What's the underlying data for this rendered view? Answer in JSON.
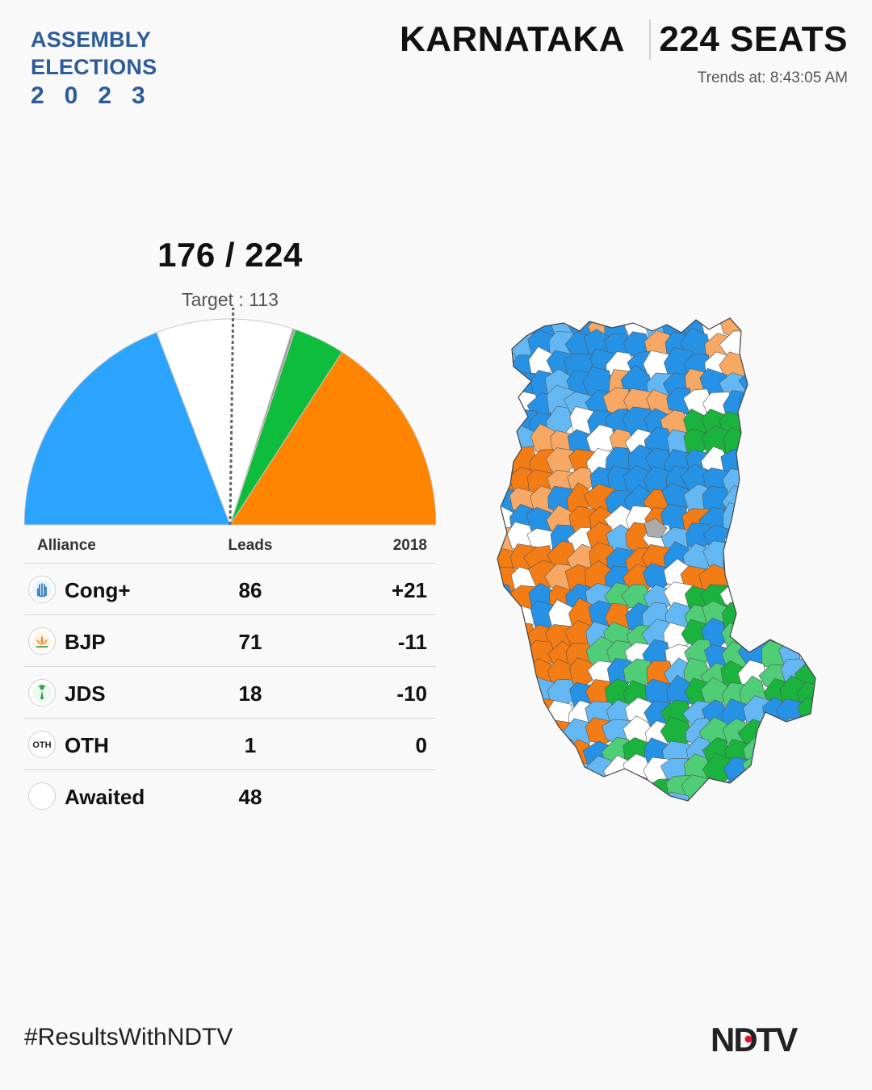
{
  "header": {
    "logo_line1": "ASSEMBLY",
    "logo_line2": "ELECTIONS",
    "logo_year": "2023",
    "state": "KARNATAKA",
    "seats": "224 SEATS",
    "trends_label": "Trends at:",
    "trends_time": "8:43:05 AM"
  },
  "tally": {
    "declared": "176",
    "separator": " / ",
    "total": "224",
    "target_text": "Target : 113"
  },
  "table": {
    "headers": {
      "alliance": "Alliance",
      "leads": "Leads",
      "prev": "2018"
    },
    "rows": [
      {
        "party": "Cong+",
        "leads": "86",
        "change": "+21",
        "icon": "hand-icon"
      },
      {
        "party": "BJP",
        "leads": "71",
        "change": "-11",
        "icon": "lotus-icon"
      },
      {
        "party": "JDS",
        "leads": "18",
        "change": "-10",
        "icon": "farmer-woman-icon"
      },
      {
        "party": "OTH",
        "leads": "1",
        "change": "0",
        "icon": "oth-icon"
      },
      {
        "party": "Awaited",
        "leads": "48",
        "change": "",
        "icon": "empty-circle-icon"
      }
    ]
  },
  "chart_data": {
    "type": "pie",
    "variant": "half-donut",
    "total": 224,
    "target": 113,
    "order": [
      "Cong+",
      "Awaited",
      "OTH",
      "JDS",
      "BJP"
    ],
    "slices": [
      {
        "label": "Cong+",
        "value": 86,
        "color": "#2ba4ff"
      },
      {
        "label": "Awaited",
        "value": 48,
        "color": "#ffffff"
      },
      {
        "label": "OTH",
        "value": 1,
        "color": "#9e9e9e"
      },
      {
        "label": "JDS",
        "value": 18,
        "color": "#0fbd3c"
      },
      {
        "label": "BJP",
        "value": 71,
        "color": "#ff8400"
      }
    ]
  },
  "map": {
    "colors": {
      "cong_lead": "#2592e6",
      "cong_light": "#63b8f3",
      "bjp_lead": "#f47c14",
      "bjp_light": "#f6a864",
      "jds_lead": "#19b33e",
      "jds_light": "#4fcd77",
      "awaited": "#ffffff",
      "other": "#aaaaaa"
    }
  },
  "footer": {
    "hashtag": "#ResultsWithNDTV",
    "brand": "NDTV",
    "brand_dot_color": "#e8112d"
  }
}
